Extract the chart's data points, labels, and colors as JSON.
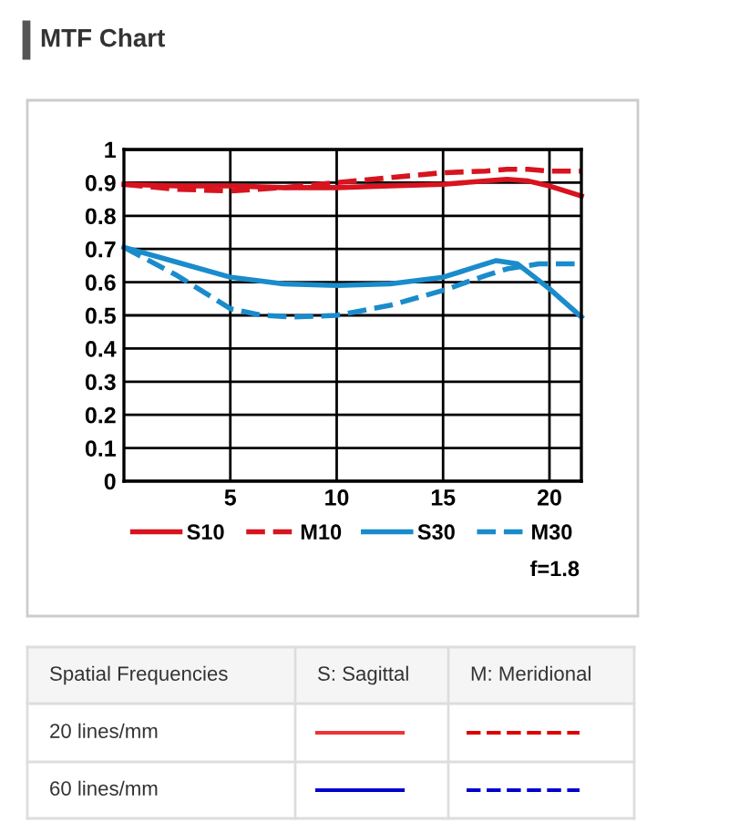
{
  "chart_data": {
    "type": "line",
    "title": "MTF Chart",
    "annotations": [
      "f=1.8",
      "Spatial Frequencies",
      "S: Sagittal",
      "M: Meridional",
      "20 lines/mm",
      "60 lines/mm"
    ],
    "xlim": [
      0,
      21.5
    ],
    "xticks": [
      5,
      10,
      15,
      20
    ],
    "ylim": [
      0,
      1
    ],
    "yticks": [
      0,
      0.1,
      0.2,
      0.3,
      0.4,
      0.5,
      0.6,
      0.7,
      0.8,
      0.9,
      1
    ],
    "grid": true,
    "legend": "bottom",
    "marker": "none",
    "series": [
      {
        "name": "S10",
        "color": "#d7141f",
        "line_style": "solid",
        "x": [
          0,
          2.5,
          5,
          7.5,
          10,
          12.5,
          15,
          17,
          18,
          19,
          20,
          21.5
        ],
        "values": [
          0.895,
          0.89,
          0.89,
          0.885,
          0.885,
          0.89,
          0.895,
          0.905,
          0.91,
          0.905,
          0.89,
          0.86
        ]
      },
      {
        "name": "M10",
        "color": "#d7141f",
        "line_style": "dashed",
        "x": [
          0,
          2.5,
          5,
          7.5,
          10,
          12.5,
          15,
          17,
          18,
          19,
          20,
          21.5
        ],
        "values": [
          0.895,
          0.88,
          0.875,
          0.885,
          0.9,
          0.915,
          0.93,
          0.935,
          0.94,
          0.94,
          0.935,
          0.935
        ]
      },
      {
        "name": "S30",
        "color": "#1a8ccb",
        "line_style": "solid",
        "x": [
          0,
          2.5,
          5,
          7.5,
          10,
          12.5,
          15,
          16.5,
          17.5,
          18.5,
          20,
          21.5
        ],
        "values": [
          0.705,
          0.66,
          0.615,
          0.595,
          0.59,
          0.595,
          0.615,
          0.645,
          0.665,
          0.655,
          0.58,
          0.495
        ]
      },
      {
        "name": "M30",
        "color": "#1a8ccb",
        "line_style": "dashed",
        "x": [
          0,
          2.5,
          5,
          6.5,
          8,
          10,
          12.5,
          15,
          17,
          18,
          19.5,
          21.5
        ],
        "values": [
          0.705,
          0.62,
          0.52,
          0.5,
          0.495,
          0.5,
          0.53,
          0.575,
          0.62,
          0.64,
          0.655,
          0.655
        ]
      }
    ]
  }
}
